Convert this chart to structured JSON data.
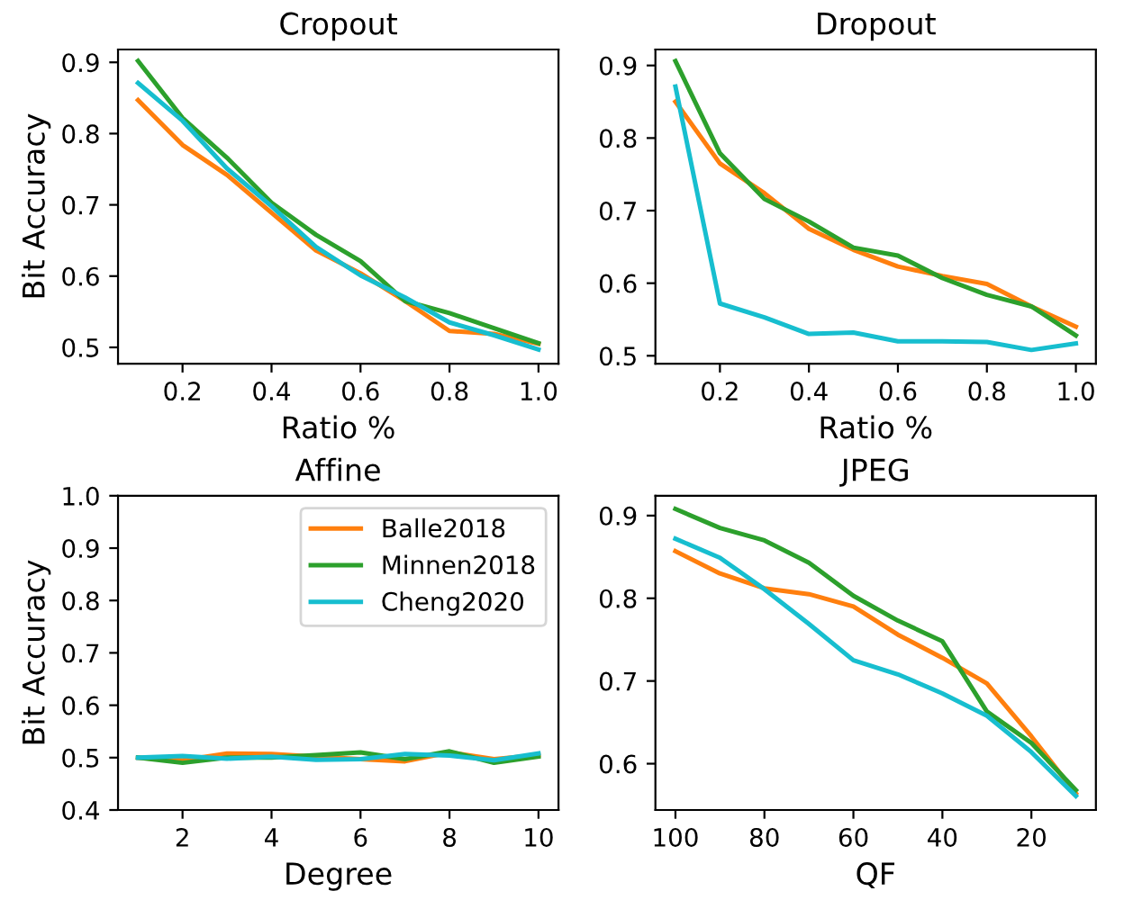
{
  "chart_data": [
    {
      "type": "line",
      "title": "Cropout",
      "xlabel": "Ratio %",
      "ylabel": "Bit Accuracy",
      "x": [
        0.1,
        0.2,
        0.3,
        0.4,
        0.5,
        0.6,
        0.7,
        0.8,
        0.9,
        1.0
      ],
      "xlim": [
        0.055,
        1.045
      ],
      "xticks": [
        {
          "value": 0.2,
          "label": "0.2"
        },
        {
          "value": 0.4,
          "label": "0.4"
        },
        {
          "value": 0.6,
          "label": "0.6"
        },
        {
          "value": 0.8,
          "label": "0.8"
        },
        {
          "value": 1.0,
          "label": "1.0"
        }
      ],
      "ylim": [
        0.477,
        0.918
      ],
      "yticks": [
        0.5,
        0.6,
        0.7,
        0.8,
        0.9
      ],
      "series": [
        {
          "color": "#ff7f0e",
          "values": [
            0.847,
            0.784,
            0.742,
            0.689,
            0.636,
            0.604,
            0.565,
            0.523,
            0.519,
            0.505
          ]
        },
        {
          "color": "#2ca02c",
          "values": [
            0.902,
            0.822,
            0.766,
            0.703,
            0.658,
            0.621,
            0.565,
            0.548,
            0.527,
            0.506
          ]
        },
        {
          "color": "#17becf",
          "values": [
            0.871,
            0.818,
            0.751,
            0.698,
            0.641,
            0.601,
            0.57,
            0.535,
            0.517,
            0.497
          ]
        }
      ]
    },
    {
      "type": "line",
      "title": "Dropout",
      "xlabel": "Ratio %",
      "x": [
        0.1,
        0.2,
        0.3,
        0.4,
        0.5,
        0.6,
        0.7,
        0.8,
        0.9,
        1.0
      ],
      "xlim": [
        0.055,
        1.045
      ],
      "xticks": [
        {
          "value": 0.2,
          "label": "0.2"
        },
        {
          "value": 0.4,
          "label": "0.4"
        },
        {
          "value": 0.6,
          "label": "0.6"
        },
        {
          "value": 0.8,
          "label": "0.8"
        },
        {
          "value": 1.0,
          "label": "1.0"
        }
      ],
      "ylim": [
        0.489,
        0.922
      ],
      "yticks": [
        0.5,
        0.6,
        0.7,
        0.8,
        0.9
      ],
      "series": [
        {
          "color": "#ff7f0e",
          "values": [
            0.85,
            0.765,
            0.724,
            0.675,
            0.646,
            0.623,
            0.61,
            0.599,
            0.568,
            0.54
          ]
        },
        {
          "color": "#2ca02c",
          "values": [
            0.906,
            0.779,
            0.716,
            0.685,
            0.649,
            0.638,
            0.607,
            0.584,
            0.568,
            0.528
          ]
        },
        {
          "color": "#17becf",
          "values": [
            0.871,
            0.572,
            0.553,
            0.53,
            0.532,
            0.52,
            0.52,
            0.519,
            0.508,
            0.517
          ]
        }
      ]
    },
    {
      "type": "line",
      "title": "Affine",
      "xlabel": "Degree",
      "ylabel": "Bit Accuracy",
      "legend": "top right",
      "x": [
        1,
        2,
        3,
        4,
        5,
        6,
        7,
        8,
        9,
        10
      ],
      "xlim": [
        0.55,
        10.45
      ],
      "xticks": [
        2,
        4,
        6,
        8,
        10
      ],
      "ylim": [
        0.4,
        1.0
      ],
      "yticks": [
        {
          "value": 0.4,
          "label": "0.4"
        },
        {
          "value": 0.5,
          "label": "0.5"
        },
        {
          "value": 0.6,
          "label": "0.6"
        },
        {
          "value": 0.7,
          "label": "0.7"
        },
        {
          "value": 0.8,
          "label": "0.8"
        },
        {
          "value": 0.9,
          "label": "0.9"
        },
        {
          "value": 1.0,
          "label": "1.0"
        }
      ],
      "series": [
        {
          "name": "Balle2018",
          "color": "#ff7f0e",
          "values": [
            0.5,
            0.495,
            0.508,
            0.507,
            0.502,
            0.497,
            0.493,
            0.51,
            0.497,
            0.505
          ]
        },
        {
          "name": "Minnen2018",
          "color": "#2ca02c",
          "values": [
            0.5,
            0.49,
            0.5,
            0.5,
            0.505,
            0.51,
            0.497,
            0.512,
            0.49,
            0.502
          ]
        },
        {
          "name": "Cheng2020",
          "color": "#17becf",
          "values": [
            0.5,
            0.503,
            0.498,
            0.502,
            0.496,
            0.497,
            0.507,
            0.504,
            0.495,
            0.508
          ]
        }
      ]
    },
    {
      "type": "line",
      "title": "JPEG",
      "xlabel": "QF",
      "x": [
        100,
        90,
        80,
        70,
        60,
        50,
        40,
        30,
        20,
        10
      ],
      "xlim": [
        104.5,
        5.5
      ],
      "xticks": [
        100,
        80,
        60,
        40,
        20
      ],
      "ylim": [
        0.544,
        0.924
      ],
      "yticks": [
        0.6,
        0.7,
        0.8,
        0.9
      ],
      "series": [
        {
          "color": "#ff7f0e",
          "values": [
            0.857,
            0.83,
            0.812,
            0.805,
            0.79,
            0.756,
            0.728,
            0.697,
            0.633,
            0.564
          ]
        },
        {
          "color": "#2ca02c",
          "values": [
            0.908,
            0.885,
            0.87,
            0.843,
            0.803,
            0.773,
            0.748,
            0.663,
            0.625,
            0.568
          ]
        },
        {
          "color": "#17becf",
          "values": [
            0.872,
            0.849,
            0.811,
            0.769,
            0.725,
            0.708,
            0.685,
            0.658,
            0.614,
            0.561
          ]
        }
      ]
    }
  ]
}
